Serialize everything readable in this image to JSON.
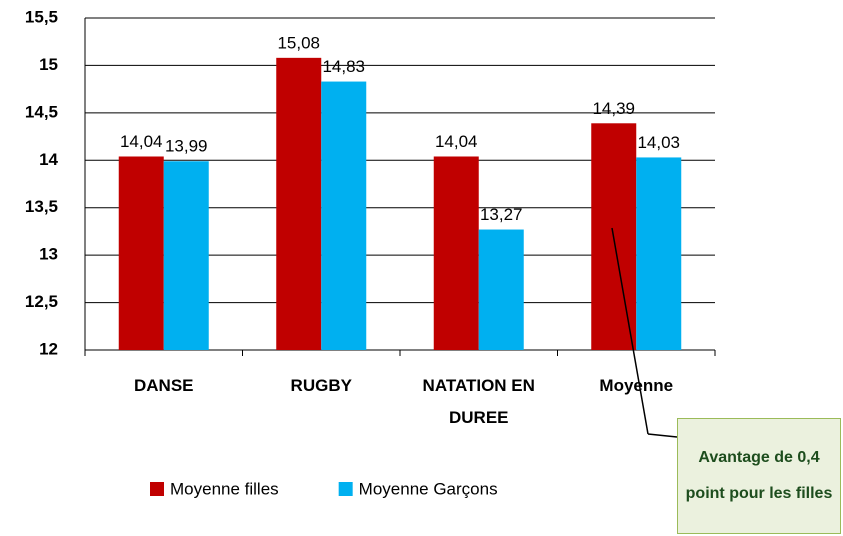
{
  "chart_data": {
    "type": "bar",
    "categories": [
      "DANSE",
      "RUGBY",
      "NATATION EN DUREE",
      "Moyenne"
    ],
    "series": [
      {
        "name": "Moyenne filles",
        "color": "#c00000",
        "values": [
          14.04,
          15.08,
          14.04,
          14.39
        ],
        "value_labels": [
          "14,04",
          "15,08",
          "14,04",
          "14,39"
        ]
      },
      {
        "name": "Moyenne Garçons",
        "color": "#00b0f0",
        "values": [
          13.99,
          14.83,
          13.27,
          14.03
        ],
        "value_labels": [
          "13,99",
          "14,83",
          "13,27",
          "14,03"
        ]
      }
    ],
    "ylim": [
      12,
      15.5
    ],
    "yticks": [
      12,
      {
        "value": 12.5,
        "label": "12,5"
      },
      13,
      {
        "value": 13.5,
        "label": "13,5"
      },
      14,
      {
        "value": 14.5,
        "label": "14,5"
      },
      15,
      {
        "value": 15.5,
        "label": "15,5"
      }
    ],
    "grid": true,
    "legend": "bottom",
    "annotation": "Avantage de 0,4 point pour les filles"
  }
}
